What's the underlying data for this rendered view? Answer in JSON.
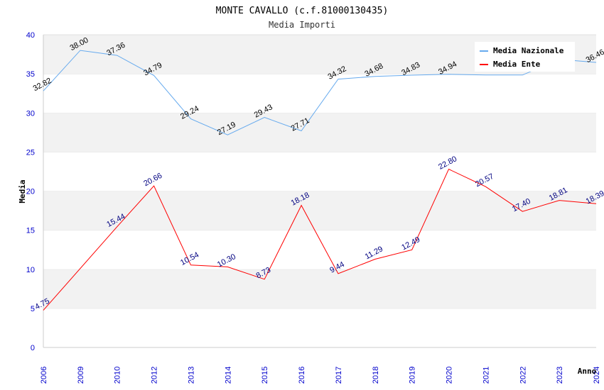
{
  "chart_data": {
    "type": "line",
    "title": "MONTE CAVALLO (c.f.81000130435)",
    "subtitle": "Media Importi",
    "xlabel": "Anno",
    "ylabel": "Media",
    "ylim": [
      0,
      40
    ],
    "yticks": [
      "0",
      "5",
      "10",
      "15",
      "20",
      "25",
      "30",
      "35",
      "40"
    ],
    "categories": [
      "2006",
      "2009",
      "2010",
      "2012",
      "2013",
      "2014",
      "2015",
      "2016",
      "2017",
      "2018",
      "2019",
      "2020",
      "2021",
      "2022",
      "2023",
      "2024"
    ],
    "series": [
      {
        "name": "Media Nazionale",
        "color": "#66aaee",
        "values": [
          32.82,
          38.0,
          37.36,
          34.79,
          29.24,
          27.19,
          29.43,
          27.71,
          34.32,
          34.68,
          34.83,
          34.94,
          34.85,
          34.85,
          36.85,
          36.46
        ],
        "labels": [
          "32.82",
          "38.00",
          "37.36",
          "34.79",
          "29.24",
          "27.19",
          "29.43",
          "27.71",
          "34.32",
          "34.68",
          "34.83",
          "34.94",
          "",
          "",
          "",
          "36.46"
        ]
      },
      {
        "name": "Media Ente",
        "color": "#ff0000",
        "values": [
          4.75,
          null,
          15.44,
          20.66,
          10.54,
          10.3,
          8.73,
          18.18,
          9.44,
          11.29,
          12.49,
          22.8,
          20.57,
          17.4,
          18.81,
          18.39
        ],
        "labels": [
          "4.75",
          "",
          "15.44",
          "20.66",
          "10.54",
          "10.30",
          "8.73",
          "18.18",
          "9.44",
          "11.29",
          "12.49",
          "22.80",
          "20.57",
          "17.40",
          "18.81",
          "18.39"
        ]
      }
    ],
    "grid": true,
    "legend_position": "top-right"
  }
}
